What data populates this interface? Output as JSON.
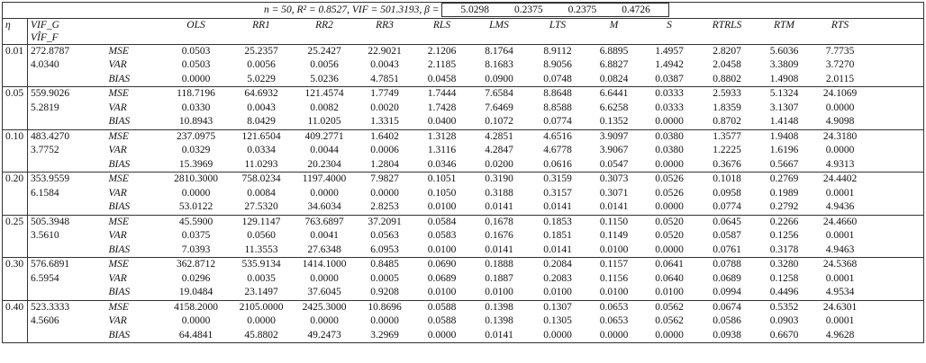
{
  "caption": {
    "text": "n = 50, R² = 0.8527, VIF = 501.3193, β =",
    "beta": [
      "5.0298",
      "0.2375",
      "0.2375",
      "0.4726"
    ]
  },
  "table": {
    "header": {
      "eta": "η",
      "vif_g": "VIF_G",
      "vif_f": "VÎF_F",
      "methods": [
        "OLS",
        "RR1",
        "RR2",
        "RR3",
        "RLS",
        "LMS",
        "LTS",
        "M",
        "S",
        "RTRLS",
        "RTM",
        "RTS"
      ]
    },
    "metrics": [
      "MSE",
      "VAR",
      "BIAS"
    ],
    "groups": [
      {
        "eta": "0.01",
        "vif_g": "272.8787",
        "vif_f": "4.0340",
        "rows": [
          [
            "0.0503",
            "25.2357",
            "25.2427",
            "22.9021",
            "2.1206",
            "8.1764",
            "8.9112",
            "6.8895",
            "1.4957",
            "2.8207",
            "5.6036",
            "7.7735"
          ],
          [
            "0.0503",
            "0.0056",
            "0.0056",
            "0.0043",
            "2.1185",
            "8.1683",
            "8.9056",
            "6.8827",
            "1.4942",
            "2.0458",
            "3.3809",
            "3.7270"
          ],
          [
            "0.0000",
            "5.0229",
            "5.0236",
            "4.7851",
            "0.0458",
            "0.0900",
            "0.0748",
            "0.0824",
            "0.0387",
            "0.8802",
            "1.4908",
            "2.0115"
          ]
        ]
      },
      {
        "eta": "0.05",
        "vif_g": "559.9026",
        "vif_f": "5.2819",
        "rows": [
          [
            "118.7196",
            "64.6932",
            "121.4574",
            "1.7749",
            "1.7444",
            "7.6584",
            "8.8648",
            "6.6441",
            "0.0333",
            "2.5933",
            "5.1324",
            "24.1069"
          ],
          [
            "0.0330",
            "0.0043",
            "0.0082",
            "0.0020",
            "1.7428",
            "7.6469",
            "8.8588",
            "6.6258",
            "0.0333",
            "1.8359",
            "3.1307",
            "0.0000"
          ],
          [
            "10.8943",
            "8.0429",
            "11.0205",
            "1.3315",
            "0.0400",
            "0.1072",
            "0.0774",
            "0.1352",
            "0.0000",
            "0.8702",
            "1.4148",
            "4.9098"
          ]
        ]
      },
      {
        "eta": "0.10",
        "vif_g": "483.4270",
        "vif_f": "3.7752",
        "rows": [
          [
            "237.0975",
            "121.6504",
            "409.2771",
            "1.6402",
            "1.3128",
            "4.2851",
            "4.6516",
            "3.9097",
            "0.0380",
            "1.3577",
            "1.9408",
            "24.3180"
          ],
          [
            "0.0329",
            "0.0334",
            "0.0044",
            "0.0006",
            "1.3116",
            "4.2847",
            "4.6778",
            "3.9067",
            "0.0380",
            "1.2225",
            "1.6196",
            "0.0000"
          ],
          [
            "15.3969",
            "11.0293",
            "20.2304",
            "1.2804",
            "0.0346",
            "0.0200",
            "0.0616",
            "0.0547",
            "0.0000",
            "0.3676",
            "0.5667",
            "4.9313"
          ]
        ]
      },
      {
        "eta": "0.20",
        "vif_g": "353.9559",
        "vif_f": "6.1584",
        "rows": [
          [
            "2810.3000",
            "758.0234",
            "1197.4000",
            "7.9827",
            "0.1051",
            "0.3190",
            "0.3159",
            "0.3073",
            "0.0526",
            "0.1018",
            "0.2769",
            "24.4402"
          ],
          [
            "0.0000",
            "0.0084",
            "0.0000",
            "0.0000",
            "0.1050",
            "0.3188",
            "0.3157",
            "0.3071",
            "0.0526",
            "0.0958",
            "0.1989",
            "0.0001"
          ],
          [
            "53.0122",
            "27.5320",
            "34.6034",
            "2.8253",
            "0.0100",
            "0.0141",
            "0.0141",
            "0.0141",
            "0.0000",
            "0.0774",
            "0.2792",
            "4.9436"
          ]
        ]
      },
      {
        "eta": "0.25",
        "vif_g": "505.3948",
        "vif_f": "3.5610",
        "rows": [
          [
            "45.5900",
            "129.1147",
            "763.6897",
            "37.2091",
            "0.0584",
            "0.1678",
            "0.1853",
            "0.1150",
            "0.0520",
            "0.0645",
            "0.2266",
            "24.4660"
          ],
          [
            "0.0375",
            "0.0560",
            "0.0041",
            "0.0563",
            "0.0583",
            "0.1676",
            "0.1851",
            "0.1149",
            "0.0520",
            "0.0587",
            "0.1256",
            "0.0001"
          ],
          [
            "7.0393",
            "11.3553",
            "27.6348",
            "6.0953",
            "0.0100",
            "0.0141",
            "0.0141",
            "0.0100",
            "0.0000",
            "0.0761",
            "0.3178",
            "4.9463"
          ]
        ]
      },
      {
        "eta": "0.30",
        "vif_g": "576.6891",
        "vif_f": "6.5954",
        "rows": [
          [
            "362.8712",
            "535.9134",
            "1414.1000",
            "0.8485",
            "0.0690",
            "0.1888",
            "0.2084",
            "0.1157",
            "0.0641",
            "0.0788",
            "0.3280",
            "24.5368"
          ],
          [
            "0.0296",
            "0.0035",
            "0.0000",
            "0.0005",
            "0.0689",
            "0.1887",
            "0.2083",
            "0.1156",
            "0.0640",
            "0.0689",
            "0.1258",
            "0.0001"
          ],
          [
            "19.0484",
            "23.1497",
            "37.6045",
            "0.9208",
            "0.0100",
            "0.0100",
            "0.0100",
            "0.0100",
            "0.0100",
            "0.0994",
            "0.4496",
            "4.9534"
          ]
        ]
      },
      {
        "eta": "0.40",
        "vif_g": "523.3333",
        "vif_f": "4.5606",
        "rows": [
          [
            "4158.2000",
            "2105.0000",
            "2425.3000",
            "10.8696",
            "0.0588",
            "0.1398",
            "0.1307",
            "0.0653",
            "0.0562",
            "0.0674",
            "0.5352",
            "24.6301"
          ],
          [
            "0.0000",
            "0.0000",
            "0.0000",
            "0.0000",
            "0.0588",
            "0.1398",
            "0.1305",
            "0.0653",
            "0.0562",
            "0.0586",
            "0.0903",
            "0.0001"
          ],
          [
            "64.4841",
            "45.8802",
            "49.2473",
            "3.2969",
            "0.0000",
            "0.0141",
            "0.0000",
            "0.0000",
            "0.0000",
            "0.0938",
            "0.6670",
            "4.9628"
          ]
        ]
      }
    ]
  }
}
